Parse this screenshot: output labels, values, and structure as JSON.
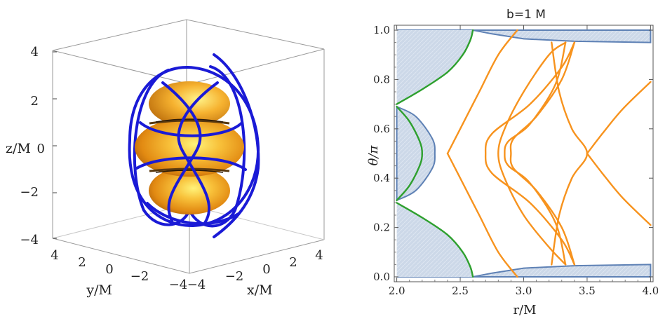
{
  "chart_data": [
    {
      "type": "3d-trajectory",
      "axes": {
        "x": {
          "label": "x/M",
          "ticks": [
            "4",
            "2",
            "0",
            "−2",
            "−4"
          ]
        },
        "y": {
          "label": "y/M",
          "ticks": [
            "4",
            "2",
            "0",
            "−2",
            "−4"
          ]
        },
        "z": {
          "label": "z/M",
          "ticks": [
            "4",
            "2",
            "0",
            "−2",
            "−4"
          ]
        }
      },
      "range": [
        -4,
        4
      ],
      "colors": {
        "orbit": "#1a1ad6",
        "surface": "#f0a020"
      }
    },
    {
      "type": "line",
      "title": "b=1 M",
      "xlabel": "r/M",
      "ylabel": "θ/π",
      "xlim": [
        1.98,
        4.02
      ],
      "ylim": [
        -0.02,
        1.02
      ],
      "xticks": [
        "2.0",
        "2.5",
        "3.0",
        "3.5",
        "4.0"
      ],
      "yticks": [
        "0.0",
        "0.2",
        "0.4",
        "0.6",
        "0.8",
        "1.0"
      ],
      "colors": {
        "region_fill": "#ccd8e8",
        "region_edge": "#5e81b5",
        "boundary": "#2ea02e",
        "orbit": "#f7931e"
      },
      "series": [
        {
          "role": "forbidden-region-top",
          "points": [
            [
              2.0,
              1.0
            ],
            [
              2.6,
              1.0
            ],
            [
              2.75,
              0.985
            ],
            [
              3.0,
              0.965
            ],
            [
              3.4,
              0.955
            ],
            [
              4.0,
              0.95
            ],
            [
              4.0,
              1.0
            ]
          ]
        },
        {
          "role": "forbidden-region-bottom",
          "points": [
            [
              2.0,
              0.0
            ],
            [
              2.6,
              0.0
            ],
            [
              2.75,
              0.015
            ],
            [
              3.0,
              0.035
            ],
            [
              3.4,
              0.045
            ],
            [
              4.0,
              0.05
            ],
            [
              4.0,
              0.0
            ]
          ]
        },
        {
          "role": "forbidden-region-middle",
          "points": [
            [
              2.0,
              0.69
            ],
            [
              2.15,
              0.65
            ],
            [
              2.28,
              0.56
            ],
            [
              2.3,
              0.5
            ],
            [
              2.28,
              0.44
            ],
            [
              2.15,
              0.35
            ],
            [
              2.0,
              0.31
            ]
          ]
        },
        {
          "role": "green-upper",
          "points": [
            [
              2.0,
              0.7
            ],
            [
              2.2,
              0.76
            ],
            [
              2.4,
              0.83
            ],
            [
              2.52,
              0.9
            ],
            [
              2.58,
              0.96
            ],
            [
              2.6,
              1.0
            ]
          ]
        },
        {
          "role": "green-lower",
          "points": [
            [
              2.0,
              0.3
            ],
            [
              2.2,
              0.24
            ],
            [
              2.4,
              0.17
            ],
            [
              2.52,
              0.1
            ],
            [
              2.58,
              0.04
            ],
            [
              2.6,
              0.0
            ]
          ]
        },
        {
          "role": "green-middle",
          "points": [
            [
              2.0,
              0.69
            ],
            [
              2.1,
              0.63
            ],
            [
              2.18,
              0.55
            ],
            [
              2.2,
              0.5
            ],
            [
              2.18,
              0.45
            ],
            [
              2.1,
              0.37
            ],
            [
              2.0,
              0.31
            ]
          ]
        },
        {
          "role": "orbit-1",
          "points": [
            [
              3.33,
              0.95
            ],
            [
              3.2,
              0.9
            ],
            [
              3.0,
              0.75
            ],
            [
              2.85,
              0.6
            ],
            [
              2.8,
              0.5
            ],
            [
              2.85,
              0.4
            ],
            [
              3.0,
              0.25
            ],
            [
              3.2,
              0.12
            ],
            [
              3.33,
              0.05
            ]
          ]
        },
        {
          "role": "orbit-2",
          "points": [
            [
              3.4,
              0.95
            ],
            [
              3.3,
              0.85
            ],
            [
              3.05,
              0.7
            ],
            [
              2.75,
              0.58
            ],
            [
              2.7,
              0.5
            ],
            [
              2.75,
              0.42
            ],
            [
              3.05,
              0.3
            ],
            [
              3.3,
              0.15
            ],
            [
              3.4,
              0.05
            ]
          ]
        },
        {
          "role": "orbit-3",
          "points": [
            [
              3.33,
              0.95
            ],
            [
              3.25,
              0.78
            ],
            [
              3.05,
              0.62
            ],
            [
              2.88,
              0.55
            ],
            [
              2.85,
              0.5
            ],
            [
              2.88,
              0.45
            ],
            [
              3.05,
              0.38
            ],
            [
              3.25,
              0.22
            ],
            [
              3.33,
              0.05
            ]
          ]
        },
        {
          "role": "orbit-4",
          "points": [
            [
              3.4,
              0.95
            ],
            [
              3.3,
              0.8
            ],
            [
              3.1,
              0.65
            ],
            [
              2.92,
              0.56
            ],
            [
              2.9,
              0.5
            ],
            [
              2.92,
              0.44
            ],
            [
              3.1,
              0.35
            ],
            [
              3.3,
              0.2
            ],
            [
              3.4,
              0.05
            ]
          ]
        },
        {
          "role": "orbit-5",
          "points": [
            [
              2.4,
              0.5
            ],
            [
              2.5,
              0.6
            ],
            [
              2.65,
              0.75
            ],
            [
              2.8,
              0.9
            ],
            [
              2.95,
              1.0
            ]
          ]
        },
        {
          "role": "orbit-6",
          "points": [
            [
              2.4,
              0.5
            ],
            [
              2.5,
              0.4
            ],
            [
              2.65,
              0.25
            ],
            [
              2.8,
              0.1
            ],
            [
              2.95,
              0.0
            ]
          ]
        },
        {
          "role": "orbit-right-upper",
          "points": [
            [
              3.5,
              0.5
            ],
            [
              3.62,
              0.58
            ],
            [
              3.78,
              0.68
            ],
            [
              4.0,
              0.79
            ]
          ]
        },
        {
          "role": "orbit-right-lower",
          "points": [
            [
              3.5,
              0.5
            ],
            [
              3.62,
              0.42
            ],
            [
              3.78,
              0.32
            ],
            [
              4.0,
              0.21
            ]
          ]
        },
        {
          "role": "orbit-right-shoulder",
          "points": [
            [
              3.22,
              0.95
            ],
            [
              3.28,
              0.75
            ],
            [
              3.38,
              0.6
            ],
            [
              3.5,
              0.5
            ],
            [
              3.38,
              0.4
            ],
            [
              3.28,
              0.25
            ],
            [
              3.22,
              0.05
            ]
          ]
        }
      ]
    }
  ]
}
